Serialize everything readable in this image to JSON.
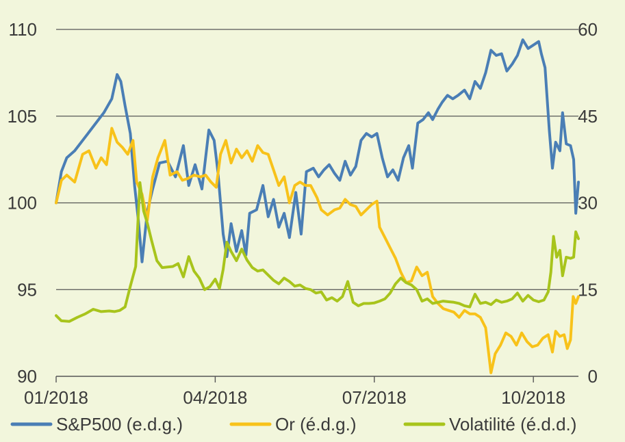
{
  "chart_data": {
    "type": "line",
    "title": "",
    "xlabel": "",
    "ylabel_left": "",
    "ylabel_right": "",
    "x_ticks": [
      "01/2018",
      "04/2018",
      "07/2018",
      "10/2018"
    ],
    "x_tick_positions": [
      0,
      3,
      6,
      9
    ],
    "x_range": [
      0,
      9.85
    ],
    "left_axis": {
      "range": [
        90,
        110
      ],
      "ticks": [
        110,
        105,
        100,
        95,
        90
      ]
    },
    "right_axis": {
      "range": [
        0,
        60
      ],
      "ticks": [
        60,
        45,
        30,
        15,
        0
      ]
    },
    "grid": "horizontal",
    "legend_position": "bottom",
    "series": [
      {
        "name": "S&P500 (e.d.g.)",
        "axis": "left",
        "color": "#4a7eb5",
        "points": [
          [
            0.0,
            100.0
          ],
          [
            0.1,
            101.8
          ],
          [
            0.2,
            102.6
          ],
          [
            0.35,
            103.0
          ],
          [
            0.55,
            103.8
          ],
          [
            0.75,
            104.6
          ],
          [
            0.9,
            105.2
          ],
          [
            1.05,
            106.0
          ],
          [
            1.15,
            107.4
          ],
          [
            1.22,
            107.0
          ],
          [
            1.3,
            105.6
          ],
          [
            1.4,
            104.0
          ],
          [
            1.48,
            101.0
          ],
          [
            1.55,
            99.0
          ],
          [
            1.62,
            96.6
          ],
          [
            1.72,
            99.5
          ],
          [
            1.82,
            100.8
          ],
          [
            1.95,
            102.3
          ],
          [
            2.1,
            102.4
          ],
          [
            2.25,
            101.5
          ],
          [
            2.4,
            103.3
          ],
          [
            2.5,
            101.0
          ],
          [
            2.62,
            102.2
          ],
          [
            2.75,
            100.8
          ],
          [
            2.88,
            104.2
          ],
          [
            2.98,
            103.6
          ],
          [
            3.05,
            101.8
          ],
          [
            3.15,
            98.2
          ],
          [
            3.22,
            96.9
          ],
          [
            3.3,
            98.8
          ],
          [
            3.4,
            97.2
          ],
          [
            3.5,
            98.4
          ],
          [
            3.58,
            97.0
          ],
          [
            3.65,
            99.4
          ],
          [
            3.78,
            99.6
          ],
          [
            3.9,
            101.0
          ],
          [
            4.0,
            99.2
          ],
          [
            4.1,
            100.2
          ],
          [
            4.2,
            98.6
          ],
          [
            4.3,
            99.4
          ],
          [
            4.4,
            98.0
          ],
          [
            4.52,
            100.6
          ],
          [
            4.62,
            98.2
          ],
          [
            4.72,
            101.8
          ],
          [
            4.85,
            102.0
          ],
          [
            4.95,
            101.5
          ],
          [
            5.05,
            101.9
          ],
          [
            5.15,
            102.2
          ],
          [
            5.25,
            101.7
          ],
          [
            5.35,
            101.3
          ],
          [
            5.45,
            102.4
          ],
          [
            5.55,
            101.6
          ],
          [
            5.65,
            102.1
          ],
          [
            5.75,
            103.6
          ],
          [
            5.85,
            104.0
          ],
          [
            5.95,
            103.8
          ],
          [
            6.05,
            104.0
          ],
          [
            6.15,
            102.6
          ],
          [
            6.25,
            101.5
          ],
          [
            6.35,
            101.9
          ],
          [
            6.45,
            101.3
          ],
          [
            6.55,
            102.6
          ],
          [
            6.65,
            103.3
          ],
          [
            6.72,
            102.0
          ],
          [
            6.82,
            104.6
          ],
          [
            6.92,
            104.8
          ],
          [
            7.02,
            105.2
          ],
          [
            7.1,
            104.8
          ],
          [
            7.2,
            105.4
          ],
          [
            7.28,
            105.8
          ],
          [
            7.38,
            106.2
          ],
          [
            7.48,
            106.0
          ],
          [
            7.58,
            106.2
          ],
          [
            7.7,
            106.5
          ],
          [
            7.8,
            106.0
          ],
          [
            7.9,
            107.0
          ],
          [
            8.0,
            106.6
          ],
          [
            8.1,
            107.5
          ],
          [
            8.2,
            108.8
          ],
          [
            8.3,
            108.5
          ],
          [
            8.4,
            108.6
          ],
          [
            8.5,
            107.6
          ],
          [
            8.6,
            108.0
          ],
          [
            8.7,
            108.5
          ],
          [
            8.8,
            109.4
          ],
          [
            8.9,
            108.9
          ],
          [
            9.0,
            109.1
          ],
          [
            9.1,
            109.3
          ],
          [
            9.15,
            108.6
          ],
          [
            9.22,
            107.8
          ],
          [
            9.3,
            104.2
          ],
          [
            9.36,
            102.0
          ],
          [
            9.42,
            103.5
          ],
          [
            9.5,
            103.0
          ],
          [
            9.55,
            105.2
          ],
          [
            9.62,
            103.4
          ],
          [
            9.7,
            103.3
          ],
          [
            9.76,
            102.5
          ],
          [
            9.8,
            99.4
          ],
          [
            9.85,
            101.2
          ]
        ]
      },
      {
        "name": "Or (é.d.g.)",
        "axis": "left",
        "color": "#f8c21a",
        "points": [
          [
            0.0,
            100.0
          ],
          [
            0.1,
            101.3
          ],
          [
            0.2,
            101.6
          ],
          [
            0.35,
            101.2
          ],
          [
            0.5,
            102.8
          ],
          [
            0.62,
            103.0
          ],
          [
            0.75,
            102.0
          ],
          [
            0.85,
            102.6
          ],
          [
            0.95,
            102.2
          ],
          [
            1.05,
            104.3
          ],
          [
            1.15,
            103.5
          ],
          [
            1.25,
            103.2
          ],
          [
            1.35,
            102.8
          ],
          [
            1.45,
            103.6
          ],
          [
            1.52,
            101.2
          ],
          [
            1.62,
            100.5
          ],
          [
            1.72,
            99.0
          ],
          [
            1.82,
            101.5
          ],
          [
            1.92,
            102.6
          ],
          [
            2.05,
            103.6
          ],
          [
            2.15,
            101.6
          ],
          [
            2.28,
            101.8
          ],
          [
            2.38,
            101.3
          ],
          [
            2.48,
            101.4
          ],
          [
            2.6,
            101.6
          ],
          [
            2.72,
            101.5
          ],
          [
            2.82,
            101.6
          ],
          [
            2.92,
            101.2
          ],
          [
            3.02,
            100.9
          ],
          [
            3.1,
            102.8
          ],
          [
            3.2,
            103.6
          ],
          [
            3.3,
            102.3
          ],
          [
            3.4,
            103.1
          ],
          [
            3.5,
            102.6
          ],
          [
            3.6,
            103.0
          ],
          [
            3.7,
            102.4
          ],
          [
            3.8,
            103.3
          ],
          [
            3.9,
            102.9
          ],
          [
            4.0,
            102.8
          ],
          [
            4.1,
            101.9
          ],
          [
            4.2,
            101.0
          ],
          [
            4.3,
            101.5
          ],
          [
            4.4,
            100.0
          ],
          [
            4.5,
            101.0
          ],
          [
            4.6,
            101.2
          ],
          [
            4.7,
            101.0
          ],
          [
            4.8,
            101.0
          ],
          [
            4.92,
            100.3
          ],
          [
            5.0,
            99.6
          ],
          [
            5.12,
            99.3
          ],
          [
            5.25,
            99.6
          ],
          [
            5.35,
            99.7
          ],
          [
            5.45,
            100.2
          ],
          [
            5.55,
            99.9
          ],
          [
            5.65,
            99.8
          ],
          [
            5.75,
            99.3
          ],
          [
            5.85,
            99.6
          ],
          [
            5.95,
            99.9
          ],
          [
            6.05,
            100.1
          ],
          [
            6.1,
            98.6
          ],
          [
            6.2,
            98.0
          ],
          [
            6.3,
            97.4
          ],
          [
            6.4,
            96.8
          ],
          [
            6.5,
            96.0
          ],
          [
            6.6,
            95.4
          ],
          [
            6.7,
            95.5
          ],
          [
            6.8,
            96.3
          ],
          [
            6.9,
            95.8
          ],
          [
            7.0,
            96.0
          ],
          [
            7.1,
            94.6
          ],
          [
            7.2,
            94.2
          ],
          [
            7.3,
            93.9
          ],
          [
            7.4,
            93.8
          ],
          [
            7.5,
            93.7
          ],
          [
            7.6,
            93.4
          ],
          [
            7.7,
            93.8
          ],
          [
            7.8,
            93.6
          ],
          [
            7.9,
            93.6
          ],
          [
            8.0,
            93.4
          ],
          [
            8.1,
            92.8
          ],
          [
            8.2,
            90.2
          ],
          [
            8.28,
            91.3
          ],
          [
            8.38,
            91.8
          ],
          [
            8.48,
            92.5
          ],
          [
            8.58,
            92.3
          ],
          [
            8.68,
            91.8
          ],
          [
            8.78,
            92.5
          ],
          [
            8.88,
            92.0
          ],
          [
            8.98,
            91.7
          ],
          [
            9.08,
            91.8
          ],
          [
            9.18,
            92.2
          ],
          [
            9.28,
            92.4
          ],
          [
            9.36,
            91.4
          ],
          [
            9.42,
            92.6
          ],
          [
            9.5,
            92.3
          ],
          [
            9.58,
            92.4
          ],
          [
            9.64,
            91.6
          ],
          [
            9.7,
            92.1
          ],
          [
            9.75,
            94.6
          ],
          [
            9.8,
            94.2
          ],
          [
            9.85,
            94.6
          ]
        ]
      },
      {
        "name": "Volatilité (é.d.d.)",
        "axis": "right",
        "color": "#a8c41c",
        "points": [
          [
            0.0,
            10.5
          ],
          [
            0.1,
            9.6
          ],
          [
            0.25,
            9.5
          ],
          [
            0.4,
            10.2
          ],
          [
            0.55,
            10.8
          ],
          [
            0.7,
            11.6
          ],
          [
            0.85,
            11.2
          ],
          [
            1.0,
            11.3
          ],
          [
            1.1,
            11.2
          ],
          [
            1.2,
            11.4
          ],
          [
            1.3,
            12.0
          ],
          [
            1.4,
            15.6
          ],
          [
            1.5,
            19.0
          ],
          [
            1.58,
            33.5
          ],
          [
            1.65,
            28.6
          ],
          [
            1.72,
            26.5
          ],
          [
            1.8,
            23.5
          ],
          [
            1.9,
            20.0
          ],
          [
            2.0,
            18.8
          ],
          [
            2.1,
            18.9
          ],
          [
            2.2,
            19.0
          ],
          [
            2.3,
            19.5
          ],
          [
            2.4,
            17.2
          ],
          [
            2.5,
            20.7
          ],
          [
            2.6,
            18.2
          ],
          [
            2.7,
            17.0
          ],
          [
            2.8,
            15.0
          ],
          [
            2.9,
            15.5
          ],
          [
            3.0,
            16.8
          ],
          [
            3.08,
            15.2
          ],
          [
            3.15,
            18.5
          ],
          [
            3.22,
            23.2
          ],
          [
            3.3,
            21.6
          ],
          [
            3.4,
            20.0
          ],
          [
            3.5,
            22.0
          ],
          [
            3.6,
            20.1
          ],
          [
            3.7,
            18.8
          ],
          [
            3.8,
            18.2
          ],
          [
            3.9,
            18.4
          ],
          [
            4.0,
            17.5
          ],
          [
            4.1,
            16.6
          ],
          [
            4.2,
            16.0
          ],
          [
            4.3,
            17.0
          ],
          [
            4.4,
            16.4
          ],
          [
            4.5,
            15.6
          ],
          [
            4.6,
            15.8
          ],
          [
            4.7,
            15.2
          ],
          [
            4.8,
            15.0
          ],
          [
            4.9,
            14.4
          ],
          [
            5.0,
            14.6
          ],
          [
            5.1,
            13.2
          ],
          [
            5.2,
            13.6
          ],
          [
            5.3,
            13.0
          ],
          [
            5.4,
            13.8
          ],
          [
            5.5,
            16.4
          ],
          [
            5.6,
            12.8
          ],
          [
            5.7,
            12.2
          ],
          [
            5.8,
            12.6
          ],
          [
            5.9,
            12.6
          ],
          [
            6.0,
            12.7
          ],
          [
            6.1,
            13.0
          ],
          [
            6.2,
            13.4
          ],
          [
            6.3,
            14.4
          ],
          [
            6.4,
            16.0
          ],
          [
            6.5,
            17.0
          ],
          [
            6.6,
            16.2
          ],
          [
            6.7,
            15.8
          ],
          [
            6.8,
            15.0
          ],
          [
            6.9,
            13.0
          ],
          [
            7.0,
            13.4
          ],
          [
            7.1,
            12.6
          ],
          [
            7.2,
            12.8
          ],
          [
            7.3,
            13.0
          ],
          [
            7.4,
            12.9
          ],
          [
            7.5,
            12.8
          ],
          [
            7.6,
            12.6
          ],
          [
            7.7,
            12.2
          ],
          [
            7.8,
            12.0
          ],
          [
            7.9,
            14.2
          ],
          [
            8.0,
            12.6
          ],
          [
            8.1,
            12.8
          ],
          [
            8.2,
            12.4
          ],
          [
            8.3,
            13.2
          ],
          [
            8.4,
            12.8
          ],
          [
            8.5,
            13.0
          ],
          [
            8.6,
            13.4
          ],
          [
            8.7,
            14.4
          ],
          [
            8.8,
            13.0
          ],
          [
            8.9,
            14.0
          ],
          [
            9.0,
            13.2
          ],
          [
            9.1,
            12.9
          ],
          [
            9.2,
            13.2
          ],
          [
            9.28,
            14.6
          ],
          [
            9.33,
            18.0
          ],
          [
            9.38,
            24.2
          ],
          [
            9.44,
            20.6
          ],
          [
            9.5,
            21.8
          ],
          [
            9.55,
            17.4
          ],
          [
            9.62,
            20.6
          ],
          [
            9.7,
            20.4
          ],
          [
            9.76,
            20.6
          ],
          [
            9.8,
            25.0
          ],
          [
            9.85,
            23.8
          ]
        ]
      }
    ]
  }
}
